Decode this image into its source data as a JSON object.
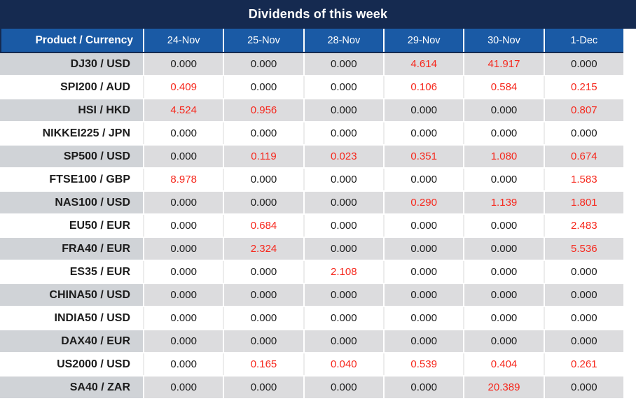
{
  "title": "Dividends of this week",
  "colors": {
    "title_bar_navy": "#152a50",
    "header_blue": "#1a5aa5",
    "product_column_gray": "#d0d3d7",
    "value_cell_gray": "#dcdcde",
    "nonzero_value_red": "#f6281d",
    "value_text": "#1c1c1c"
  },
  "value_style_rule": "non-zero dividend values are rendered in red, zero values in black",
  "table": {
    "corner_header": "Product / Currency",
    "date_columns": [
      "24-Nov",
      "25-Nov",
      "28-Nov",
      "29-Nov",
      "30-Nov",
      "1-Dec"
    ],
    "rows": [
      {
        "product": "DJ30 / USD",
        "values": [
          "0.000",
          "0.000",
          "0.000",
          "4.614",
          "41.917",
          "0.000"
        ]
      },
      {
        "product": "SPI200 / AUD",
        "values": [
          "0.409",
          "0.000",
          "0.000",
          "0.106",
          "0.584",
          "0.215"
        ]
      },
      {
        "product": "HSI / HKD",
        "values": [
          "4.524",
          "0.956",
          "0.000",
          "0.000",
          "0.000",
          "0.807"
        ]
      },
      {
        "product": "NIKKEI225 / JPN",
        "values": [
          "0.000",
          "0.000",
          "0.000",
          "0.000",
          "0.000",
          "0.000"
        ]
      },
      {
        "product": "SP500 / USD",
        "values": [
          "0.000",
          "0.119",
          "0.023",
          "0.351",
          "1.080",
          "0.674"
        ]
      },
      {
        "product": "FTSE100 / GBP",
        "values": [
          "8.978",
          "0.000",
          "0.000",
          "0.000",
          "0.000",
          "1.583"
        ]
      },
      {
        "product": "NAS100 / USD",
        "values": [
          "0.000",
          "0.000",
          "0.000",
          "0.290",
          "1.139",
          "1.801"
        ]
      },
      {
        "product": "EU50 / EUR",
        "values": [
          "0.000",
          "0.684",
          "0.000",
          "0.000",
          "0.000",
          "2.483"
        ]
      },
      {
        "product": "FRA40 / EUR",
        "values": [
          "0.000",
          "2.324",
          "0.000",
          "0.000",
          "0.000",
          "5.536"
        ]
      },
      {
        "product": "ES35 / EUR",
        "values": [
          "0.000",
          "0.000",
          "2.108",
          "0.000",
          "0.000",
          "0.000"
        ]
      },
      {
        "product": "CHINA50 / USD",
        "values": [
          "0.000",
          "0.000",
          "0.000",
          "0.000",
          "0.000",
          "0.000"
        ]
      },
      {
        "product": "INDIA50 / USD",
        "values": [
          "0.000",
          "0.000",
          "0.000",
          "0.000",
          "0.000",
          "0.000"
        ]
      },
      {
        "product": "DAX40 / EUR",
        "values": [
          "0.000",
          "0.000",
          "0.000",
          "0.000",
          "0.000",
          "0.000"
        ]
      },
      {
        "product": "US2000 / USD",
        "values": [
          "0.000",
          "0.165",
          "0.040",
          "0.539",
          "0.404",
          "0.261"
        ]
      },
      {
        "product": "SA40 / ZAR",
        "values": [
          "0.000",
          "0.000",
          "0.000",
          "0.000",
          "20.389",
          "0.000"
        ]
      }
    ]
  },
  "chart_data": {
    "type": "table",
    "title": "Dividends of this week",
    "columns": [
      "Product / Currency",
      "24-Nov",
      "25-Nov",
      "28-Nov",
      "29-Nov",
      "30-Nov",
      "1-Dec"
    ],
    "rows": [
      [
        "DJ30 / USD",
        0.0,
        0.0,
        0.0,
        4.614,
        41.917,
        0.0
      ],
      [
        "SPI200 / AUD",
        0.409,
        0.0,
        0.0,
        0.106,
        0.584,
        0.215
      ],
      [
        "HSI / HKD",
        4.524,
        0.956,
        0.0,
        0.0,
        0.0,
        0.807
      ],
      [
        "NIKKEI225 / JPN",
        0.0,
        0.0,
        0.0,
        0.0,
        0.0,
        0.0
      ],
      [
        "SP500 / USD",
        0.0,
        0.119,
        0.023,
        0.351,
        1.08,
        0.674
      ],
      [
        "FTSE100 / GBP",
        8.978,
        0.0,
        0.0,
        0.0,
        0.0,
        1.583
      ],
      [
        "NAS100 / USD",
        0.0,
        0.0,
        0.0,
        0.29,
        1.139,
        1.801
      ],
      [
        "EU50 / EUR",
        0.0,
        0.684,
        0.0,
        0.0,
        0.0,
        2.483
      ],
      [
        "FRA40 / EUR",
        0.0,
        2.324,
        0.0,
        0.0,
        0.0,
        5.536
      ],
      [
        "ES35 / EUR",
        0.0,
        0.0,
        2.108,
        0.0,
        0.0,
        0.0
      ],
      [
        "CHINA50 / USD",
        0.0,
        0.0,
        0.0,
        0.0,
        0.0,
        0.0
      ],
      [
        "INDIA50 / USD",
        0.0,
        0.0,
        0.0,
        0.0,
        0.0,
        0.0
      ],
      [
        "DAX40 / EUR",
        0.0,
        0.0,
        0.0,
        0.0,
        0.0,
        0.0
      ],
      [
        "US2000 / USD",
        0.0,
        0.165,
        0.04,
        0.539,
        0.404,
        0.261
      ],
      [
        "SA40 / ZAR",
        0.0,
        0.0,
        0.0,
        0.0,
        20.389,
        0.0
      ]
    ]
  }
}
